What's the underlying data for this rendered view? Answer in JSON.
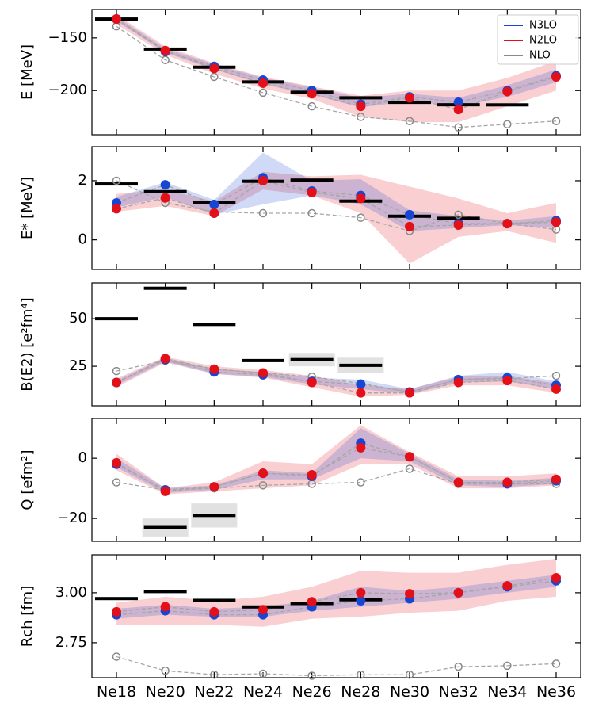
{
  "chart_data": [
    {
      "type": "line",
      "ylabel": "E [MeV]",
      "ylim": [
        -242,
        -123
      ],
      "yticks": [
        {
          "value": -150,
          "label": "−150"
        },
        {
          "value": -200,
          "label": "−200"
        }
      ],
      "legend": "upper right",
      "series": [
        {
          "name": "N3LO",
          "color": "#1546d4",
          "values": [
            -132,
            -163,
            -177,
            -190,
            -200,
            -213,
            -206,
            -211,
            -200,
            -186
          ],
          "band": {
            "lower": [
              -134,
              -164,
              -180,
              -194,
              -204,
              -216,
              -210,
              -215,
              -206,
              -192
            ],
            "upper": [
              -130,
              -160,
              -175,
              -188,
              -197,
              -207,
              -203,
              -207,
              -195,
              -180
            ]
          }
        },
        {
          "name": "N2LO",
          "color": "#e3101a",
          "values": [
            -132,
            -162,
            -179,
            -193,
            -203,
            -215,
            -207,
            -218,
            -201,
            -187
          ],
          "band": {
            "lower": [
              -137,
              -166,
              -184,
              -198,
              -208,
              -225,
              -230,
              -230,
              -215,
              -200
            ],
            "upper": [
              -128,
              -158,
              -174,
              -187,
              -196,
              -205,
              -200,
              -200,
              -188,
              -172
            ]
          }
        },
        {
          "name": "NLO",
          "color": "#888888",
          "values": [
            -139,
            -171,
            -187,
            -202,
            -215,
            -225,
            -229,
            -235,
            -232,
            -229
          ]
        }
      ],
      "experiment": {
        "values": [
          -132.1,
          -160.6,
          -177.8,
          -191.8,
          -201.6,
          -206.9,
          -211.2,
          -213.5,
          -213.6,
          null
        ]
      }
    },
    {
      "type": "line",
      "ylabel": "E* [MeV]",
      "ylim": [
        -1,
        3.15
      ],
      "yticks": [
        0,
        2
      ],
      "series": [
        {
          "color": "#1546d4",
          "values": [
            1.25,
            1.86,
            1.2,
            2.1,
            1.65,
            1.5,
            0.85,
            0.55,
            0.55,
            0.65
          ],
          "band": {
            "lower": [
              1.1,
              1.45,
              0.85,
              1.2,
              1.5,
              1.2,
              0.3,
              0.4,
              0.5,
              0.4
            ],
            "upper": [
              1.45,
              1.95,
              1.35,
              2.95,
              2.0,
              2.05,
              1.0,
              0.8,
              0.65,
              0.8
            ]
          }
        },
        {
          "color": "#e3101a",
          "values": [
            1.05,
            1.42,
            0.9,
            2.0,
            1.6,
            1.4,
            0.45,
            0.5,
            0.55,
            0.6
          ],
          "band": {
            "lower": [
              0.95,
              1.15,
              0.8,
              1.7,
              1.5,
              0.9,
              -0.8,
              0.1,
              0.3,
              -0.1
            ],
            "upper": [
              1.55,
              1.7,
              1.3,
              2.3,
              2.15,
              2.2,
              1.8,
              1.4,
              0.9,
              1.25
            ]
          }
        },
        {
          "color": "#888888",
          "values": [
            2.0,
            1.25,
            0.95,
            0.9,
            0.9,
            0.75,
            0.3,
            0.85,
            0.55,
            0.35
          ]
        }
      ],
      "experiment": {
        "values": [
          1.89,
          1.63,
          1.27,
          1.98,
          2.02,
          1.31,
          0.8,
          0.73,
          null,
          null
        ]
      }
    },
    {
      "type": "line",
      "ylabel": "B(E2) [e²fm⁴]",
      "ylim": [
        4.2,
        68.8
      ],
      "yticks": [
        25,
        50
      ],
      "series": [
        {
          "color": "#1546d4",
          "values": [
            16.5,
            28.5,
            22,
            20.5,
            17,
            15.5,
            11.5,
            18,
            19,
            15
          ],
          "band": {
            "lower": [
              15,
              27.5,
              21,
              19.5,
              15.5,
              13,
              10.5,
              16.5,
              17,
              13
            ],
            "upper": [
              17.5,
              29.5,
              23.5,
              22,
              19,
              18,
              13,
              20,
              22,
              17
            ]
          }
        },
        {
          "color": "#e3101a",
          "values": [
            16.5,
            29,
            23.5,
            21.5,
            16.5,
            11,
            11,
            16.5,
            17.5,
            13
          ],
          "band": {
            "lower": [
              14,
              27,
              21,
              19,
              14,
              9,
              10,
              15,
              15,
              11
            ],
            "upper": [
              18.5,
              30,
              25,
              23,
              20,
              15,
              13,
              19.5,
              20,
              16
            ]
          }
        },
        {
          "color": "#888888",
          "values": [
            22.5,
            28,
            23.5,
            21.5,
            19.5,
            16,
            11.5,
            18,
            18.5,
            20
          ]
        }
      ],
      "experiment": {
        "values": [
          50,
          66,
          47,
          28,
          28.5,
          25.5,
          null,
          null,
          null,
          null
        ],
        "errors": [
          null,
          null,
          null,
          null,
          3.5,
          4,
          null,
          null,
          null,
          null
        ]
      }
    },
    {
      "type": "line",
      "ylabel": "Q [efm²]",
      "ylim": [
        -27.6,
        13.2
      ],
      "yticks": [
        {
          "value": -20,
          "label": "−20"
        },
        0
      ],
      "series": [
        {
          "color": "#1546d4",
          "values": [
            -2,
            -10.5,
            -9.5,
            -5,
            -6,
            5,
            0.5,
            -8,
            -8.5,
            -7.5
          ],
          "band": {
            "lower": [
              -3,
              -11.5,
              -10.5,
              -7,
              -7,
              0,
              -1,
              -9,
              -9.5,
              -8.5
            ],
            "upper": [
              0,
              -10,
              -9,
              -4,
              -5,
              10,
              1.5,
              -7,
              -7.5,
              -6.5
            ]
          }
        },
        {
          "color": "#e3101a",
          "values": [
            -1.5,
            -11,
            -9.5,
            -5,
            -5.5,
            3.5,
            0.5,
            -8,
            -8,
            -7
          ],
          "band": {
            "lower": [
              -4,
              -12,
              -11,
              -10,
              -9,
              -2,
              -2,
              -10,
              -10,
              -9
            ],
            "upper": [
              1.5,
              -10,
              -8,
              -1,
              -2,
              11,
              2,
              -6,
              -6,
              -5
            ]
          }
        },
        {
          "color": "#888888",
          "values": [
            -8,
            -10.5,
            -10,
            -9,
            -8.5,
            -8,
            -3.5,
            -8.5,
            -8.5,
            -8.5
          ]
        }
      ],
      "experiment": {
        "values": [
          null,
          -23,
          -19,
          null,
          null,
          null,
          null,
          null,
          null,
          null
        ],
        "errors": [
          null,
          3,
          4,
          null,
          null,
          null,
          null,
          null,
          null,
          null
        ]
      }
    },
    {
      "type": "line",
      "ylabel": "Rch [fm]",
      "ylim": [
        2.575,
        3.19
      ],
      "yticks": [
        2.75,
        {
          "value": 3.0,
          "label": "3.00"
        }
      ],
      "categories": [
        "Ne18",
        "Ne20",
        "Ne22",
        "Ne24",
        "Ne26",
        "Ne28",
        "Ne30",
        "Ne32",
        "Ne34",
        "Ne36"
      ],
      "series": [
        {
          "color": "#1546d4",
          "values": [
            2.89,
            2.91,
            2.89,
            2.89,
            2.93,
            2.96,
            2.97,
            3.0,
            3.03,
            3.06
          ],
          "band": {
            "lower": [
              2.87,
              2.89,
              2.88,
              2.88,
              2.91,
              2.93,
              2.95,
              2.97,
              3.0,
              3.03
            ],
            "upper": [
              2.92,
              2.94,
              2.92,
              2.93,
              2.96,
              3.03,
              3.01,
              3.03,
              3.06,
              3.09
            ]
          }
        },
        {
          "color": "#e3101a",
          "values": [
            2.905,
            2.93,
            2.905,
            2.915,
            2.955,
            3.0,
            2.995,
            3.0,
            3.035,
            3.075
          ],
          "band": {
            "lower": [
              2.84,
              2.84,
              2.84,
              2.83,
              2.87,
              2.88,
              2.9,
              2.91,
              2.96,
              2.98
            ],
            "upper": [
              2.95,
              2.98,
              2.96,
              2.98,
              3.03,
              3.11,
              3.1,
              3.1,
              3.14,
              3.17
            ]
          }
        },
        {
          "color": "#888888",
          "values": [
            2.68,
            2.61,
            2.59,
            2.595,
            2.585,
            2.59,
            2.59,
            2.63,
            2.635,
            2.645
          ]
        }
      ],
      "experiment": {
        "values": [
          2.971,
          3.006,
          2.962,
          2.929,
          2.946,
          2.965,
          null,
          null,
          null,
          null
        ]
      }
    }
  ]
}
